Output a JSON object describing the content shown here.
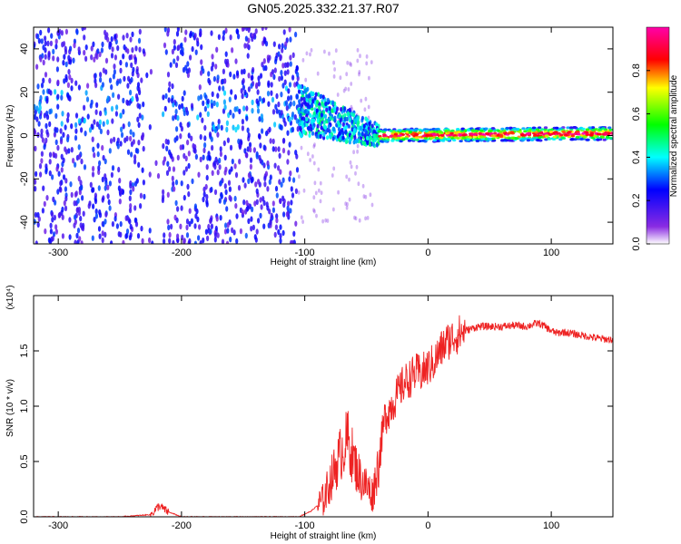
{
  "figure_title": "GN05.2025.332.21.37.R07",
  "colors": {
    "snr_line": "#ee2222",
    "axis": "#000000",
    "background": "#ffffff",
    "colormap": [
      "#ffffff",
      "#8a2be2",
      "#0000ff",
      "#00ffff",
      "#00ff00",
      "#ffff00",
      "#ff0000",
      "#ff00aa"
    ]
  },
  "chart_data": [
    {
      "type": "heatmap",
      "xlabel": "Height of straight line (km)",
      "ylabel": "Frequency (Hz)",
      "xlim": [
        -320,
        150
      ],
      "ylim": [
        -50,
        50
      ],
      "xticks": [
        -300,
        -200,
        -100,
        0,
        100
      ],
      "yticks": [
        -40,
        -20,
        0,
        20,
        40
      ],
      "colorbar": {
        "label": "Normalized spectral amplitude",
        "range": [
          0,
          1
        ],
        "ticks": [
          0.0,
          0.2,
          0.4,
          0.6,
          0.8
        ]
      },
      "regions": [
        {
          "x": [
            -320,
            -105
          ],
          "frequency_band": [
            -50,
            50
          ],
          "amplitude": [
            0.1,
            0.3
          ]
        },
        {
          "x": [
            -230,
            -215
          ],
          "frequency_band": [
            -50,
            50
          ],
          "amplitude": [
            0.0,
            0.05
          ]
        },
        {
          "x": [
            -105,
            -40
          ],
          "frequency_center": [
            12,
            0
          ],
          "frequency_halfwidth": [
            12,
            5
          ],
          "amplitude": [
            0.2,
            0.5
          ]
        },
        {
          "x": [
            -40,
            150
          ],
          "frequency_center": [
            0,
            1
          ],
          "frequency_halfwidth": [
            3,
            3
          ],
          "amplitude": [
            0.5,
            1.0
          ]
        }
      ]
    },
    {
      "type": "line",
      "xlabel": "Height of straight line (km)",
      "ylabel": "SNR (10 * v/v)",
      "y_multiplier": "(x10⁴)",
      "xlim": [
        -320,
        150
      ],
      "ylim": [
        0,
        2.0
      ],
      "xticks": [
        -300,
        -200,
        -100,
        0,
        100
      ],
      "yticks": [
        0.0,
        0.5,
        1.0,
        1.5
      ],
      "series": [
        {
          "x": [
            -320,
            -250,
            -225,
            -218,
            -212,
            -200,
            -150,
            -105,
            -95,
            -85,
            -80,
            -75,
            -70,
            -65,
            -60,
            -55,
            -50,
            -45,
            -40,
            -35,
            -30,
            -25,
            -20,
            -15,
            -10,
            -5,
            0,
            5,
            10,
            15,
            20,
            25,
            30,
            35,
            40,
            50,
            60,
            70,
            80,
            85,
            90,
            95,
            100,
            105,
            110,
            120,
            130,
            140,
            150
          ],
          "y": [
            0.0,
            0.0,
            0.02,
            0.1,
            0.05,
            0.0,
            0.0,
            0.0,
            0.05,
            0.15,
            0.3,
            0.45,
            0.6,
            0.7,
            0.5,
            0.35,
            0.28,
            0.2,
            0.5,
            0.9,
            1.0,
            1.1,
            1.2,
            1.25,
            1.3,
            1.3,
            1.35,
            1.4,
            1.5,
            1.58,
            1.62,
            1.65,
            1.68,
            1.7,
            1.72,
            1.72,
            1.72,
            1.73,
            1.72,
            1.74,
            1.75,
            1.72,
            1.68,
            1.66,
            1.67,
            1.65,
            1.63,
            1.61,
            1.6
          ]
        }
      ]
    }
  ]
}
